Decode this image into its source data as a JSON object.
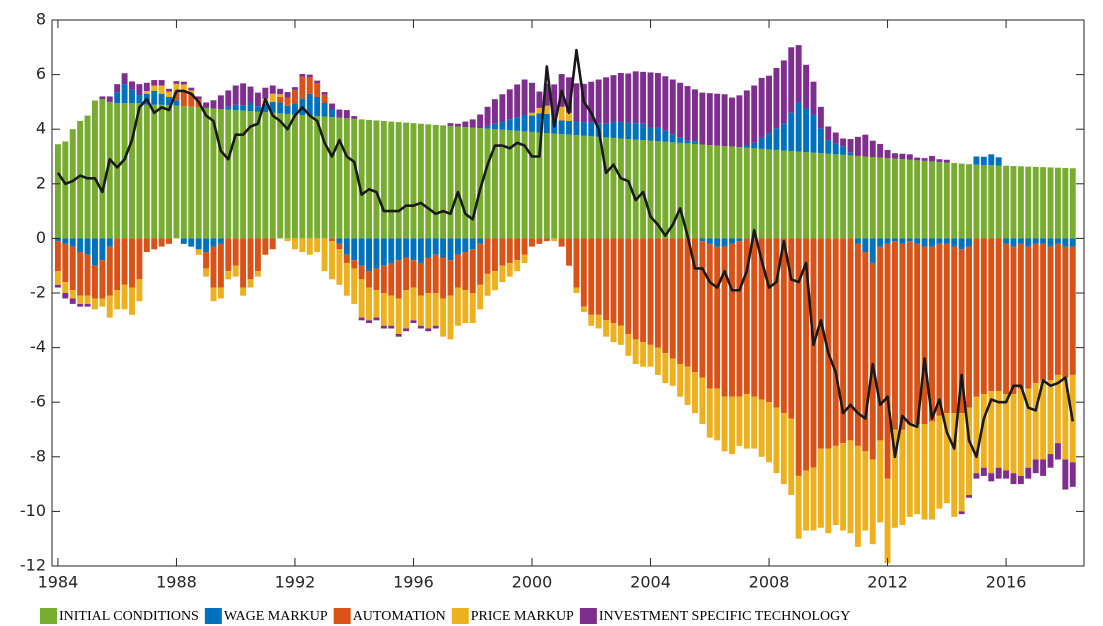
{
  "chart_data": {
    "type": "stacked-bar",
    "xlim": [
      1983.8,
      2018.63
    ],
    "ylim": [
      -12,
      8
    ],
    "xticks": [
      1984,
      1988,
      1992,
      1996,
      2000,
      2004,
      2008,
      2012,
      2016
    ],
    "yticks": [
      -12,
      -10,
      -8,
      -6,
      -4,
      -2,
      0,
      2,
      4,
      6,
      8
    ],
    "x": [
      1984,
      1984.25,
      1984.5,
      1984.75,
      1985,
      1985.25,
      1985.5,
      1985.75,
      1986,
      1986.25,
      1986.5,
      1986.75,
      1987,
      1987.25,
      1987.5,
      1987.75,
      1988,
      1988.25,
      1988.5,
      1988.75,
      1989,
      1989.25,
      1989.5,
      1989.75,
      1990,
      1990.25,
      1990.5,
      1990.75,
      1991,
      1991.25,
      1991.5,
      1991.75,
      1992,
      1992.25,
      1992.5,
      1992.75,
      1993,
      1993.25,
      1993.5,
      1993.75,
      1994,
      1994.25,
      1994.5,
      1994.75,
      1995,
      1995.25,
      1995.5,
      1995.75,
      1996,
      1996.25,
      1996.5,
      1996.75,
      1997,
      1997.25,
      1997.5,
      1997.75,
      1998,
      1998.25,
      1998.5,
      1998.75,
      1999,
      1999.25,
      1999.5,
      1999.75,
      2000,
      2000.25,
      2000.5,
      2000.75,
      2001,
      2001.25,
      2001.5,
      2001.75,
      2002,
      2002.25,
      2002.5,
      2002.75,
      2003,
      2003.25,
      2003.5,
      2003.75,
      2004,
      2004.25,
      2004.5,
      2004.75,
      2005,
      2005.25,
      2005.5,
      2005.75,
      2006,
      2006.25,
      2006.5,
      2006.75,
      2007,
      2007.25,
      2007.5,
      2007.75,
      2008,
      2008.25,
      2008.5,
      2008.75,
      2009,
      2009.25,
      2009.5,
      2009.75,
      2010,
      2010.25,
      2010.5,
      2010.75,
      2011,
      2011.25,
      2011.5,
      2011.75,
      2012,
      2012.25,
      2012.5,
      2012.75,
      2013,
      2013.25,
      2013.5,
      2013.75,
      2014,
      2014.25,
      2014.5,
      2014.75,
      2015,
      2015.25,
      2015.5,
      2015.75,
      2016,
      2016.25,
      2016.5,
      2016.75,
      2017,
      2017.25,
      2017.5,
      2017.75,
      2018,
      2018.25
    ],
    "series": [
      {
        "name": "INITIAL CONDITIONS",
        "color": "#77ac30",
        "values": [
          3.45,
          3.55,
          4.0,
          4.3,
          4.5,
          5.05,
          5.1,
          5.0,
          4.95,
          4.95,
          4.95,
          4.95,
          4.9,
          4.9,
          4.9,
          4.88,
          4.86,
          4.84,
          4.82,
          4.8,
          4.78,
          4.76,
          4.74,
          4.72,
          4.7,
          4.68,
          4.66,
          4.64,
          4.62,
          4.6,
          4.58,
          4.56,
          4.54,
          4.52,
          4.5,
          4.48,
          4.46,
          4.44,
          4.42,
          4.4,
          4.38,
          4.36,
          4.34,
          4.32,
          4.3,
          4.28,
          4.26,
          4.24,
          4.22,
          4.2,
          4.18,
          4.16,
          4.14,
          4.12,
          4.1,
          4.08,
          4.06,
          4.04,
          4.02,
          4.0,
          3.98,
          3.96,
          3.94,
          3.92,
          3.9,
          3.88,
          3.86,
          3.84,
          3.82,
          3.8,
          3.78,
          3.76,
          3.74,
          3.72,
          3.7,
          3.68,
          3.66,
          3.64,
          3.62,
          3.6,
          3.58,
          3.56,
          3.54,
          3.52,
          3.5,
          3.48,
          3.46,
          3.44,
          3.42,
          3.4,
          3.38,
          3.36,
          3.34,
          3.32,
          3.3,
          3.28,
          3.26,
          3.24,
          3.22,
          3.2,
          3.18,
          3.16,
          3.14,
          3.12,
          3.1,
          3.08,
          3.06,
          3.04,
          3.02,
          3.0,
          2.98,
          2.96,
          2.94,
          2.92,
          2.9,
          2.88,
          2.86,
          2.84,
          2.82,
          2.8,
          2.78,
          2.76,
          2.74,
          2.72,
          2.7,
          2.69,
          2.68,
          2.67,
          2.66,
          2.65,
          2.64,
          2.63,
          2.62,
          2.61,
          2.6,
          2.59,
          2.58,
          2.57
        ]
      },
      {
        "name": "WAGE MARKUP",
        "color": "#0072bd",
        "values": [
          -0.1,
          -0.2,
          -0.3,
          -0.5,
          -0.6,
          -1.0,
          -0.8,
          -0.3,
          0.4,
          0.7,
          0.5,
          0.3,
          0.4,
          0.5,
          0.4,
          0.3,
          0.2,
          -0.2,
          -0.3,
          -0.4,
          -0.5,
          -0.3,
          -0.2,
          0.1,
          0.2,
          0.2,
          0.3,
          0.2,
          0.3,
          0.4,
          0.4,
          0.3,
          0.4,
          0.6,
          0.8,
          0.7,
          0.5,
          0.3,
          -0.2,
          -0.6,
          -0.8,
          -1.0,
          -1.2,
          -1.1,
          -1.0,
          -0.9,
          -0.8,
          -0.7,
          -0.8,
          -0.9,
          -0.7,
          -0.6,
          -0.7,
          -0.8,
          -0.6,
          -0.5,
          -0.4,
          -0.2,
          0.1,
          0.2,
          0.3,
          0.4,
          0.5,
          0.6,
          0.6,
          0.7,
          0.7,
          0.5,
          0.5,
          0.5,
          0.5,
          0.5,
          0.5,
          0.5,
          0.5,
          0.6,
          0.6,
          0.6,
          0.6,
          0.6,
          0.5,
          0.5,
          0.4,
          0.3,
          0.2,
          0.1,
          0.1,
          -0.1,
          -0.2,
          -0.3,
          -0.3,
          -0.2,
          -0.1,
          0.1,
          0.2,
          0.4,
          0.6,
          0.8,
          1.0,
          1.4,
          1.8,
          1.6,
          1.4,
          0.9,
          0.5,
          0.4,
          0.3,
          0.1,
          -0.2,
          -0.5,
          -0.9,
          -0.3,
          -0.2,
          -0.1,
          -0.2,
          -0.1,
          -0.2,
          -0.3,
          -0.3,
          -0.2,
          -0.2,
          -0.3,
          -0.4,
          -0.3,
          0.3,
          0.3,
          0.4,
          0.3,
          -0.2,
          -0.3,
          -0.2,
          -0.3,
          -0.2,
          -0.2,
          -0.3,
          -0.2,
          -0.3,
          -0.3
        ]
      },
      {
        "name": "AUTOMATION",
        "color": "#d95319",
        "values": [
          -1.1,
          -1.4,
          -1.6,
          -1.6,
          -1.5,
          -1.2,
          -1.4,
          -1.8,
          -1.9,
          -1.7,
          -1.8,
          -1.5,
          -0.5,
          -0.4,
          -0.3,
          -0.2,
          0.3,
          0.6,
          0.5,
          0.3,
          -0.6,
          -1.5,
          -1.6,
          -1.2,
          -1.0,
          -1.8,
          -1.5,
          -1.2,
          -0.6,
          -0.4,
          0.2,
          0.3,
          0.5,
          0.8,
          0.6,
          0.5,
          0.3,
          -0.1,
          -0.2,
          -0.3,
          -0.3,
          -0.5,
          -0.6,
          -0.8,
          -1.0,
          -1.2,
          -1.4,
          -1.2,
          -1.0,
          -1.2,
          -1.3,
          -1.4,
          -1.5,
          -1.3,
          -1.2,
          -1.4,
          -1.6,
          -1.5,
          -1.3,
          -1.2,
          -1.0,
          -0.9,
          -0.8,
          -0.6,
          -0.3,
          -0.2,
          -0.1,
          0.1,
          -0.3,
          -1.0,
          -1.8,
          -2.5,
          -2.8,
          -2.8,
          -3.0,
          -3.1,
          -3.2,
          -3.5,
          -3.7,
          -3.8,
          -3.9,
          -4.0,
          -4.2,
          -4.4,
          -4.6,
          -4.7,
          -4.9,
          -5.0,
          -5.3,
          -5.2,
          -5.5,
          -5.6,
          -5.7,
          -5.7,
          -5.8,
          -5.9,
          -6.0,
          -6.2,
          -6.4,
          -6.6,
          -8.7,
          -8.5,
          -8.4,
          -7.7,
          -7.7,
          -7.6,
          -7.5,
          -7.4,
          -7.4,
          -7.3,
          -7.2,
          -7.1,
          -8.6,
          -6.9,
          -6.8,
          -6.7,
          -6.6,
          -6.5,
          -6.4,
          -6.3,
          -6.2,
          -6.1,
          -6.0,
          -5.9,
          -5.8,
          -5.7,
          -5.6,
          -5.6,
          -5.5,
          -5.4,
          -5.3,
          -5.2,
          -5.1,
          -5.0,
          -4.9,
          -4.8,
          -4.8,
          -4.7
        ]
      },
      {
        "name": "PRICE MARKUP",
        "color": "#edb120",
        "values": [
          -0.5,
          -0.4,
          -0.3,
          -0.3,
          -0.3,
          -0.4,
          -0.3,
          -0.8,
          -0.7,
          -0.9,
          -1.0,
          -0.8,
          0.1,
          0.2,
          0.3,
          0.2,
          0.3,
          0.2,
          0.1,
          -0.2,
          -0.3,
          -0.5,
          -0.4,
          -0.3,
          -0.4,
          -0.3,
          -0.3,
          -0.2,
          0.2,
          0.3,
          0.1,
          -0.1,
          -0.4,
          -0.5,
          -0.6,
          -0.5,
          -1.2,
          -1.4,
          -1.3,
          -1.2,
          -1.3,
          -1.4,
          -1.2,
          -1.0,
          -1.2,
          -1.1,
          -1.3,
          -1.4,
          -1.2,
          -1.1,
          -1.3,
          -1.2,
          -1.4,
          -1.6,
          -1.4,
          -1.2,
          -1.1,
          -0.9,
          -0.8,
          -0.7,
          -0.6,
          -0.5,
          -0.4,
          -0.3,
          0.1,
          0.2,
          0.3,
          -0.1,
          0.5,
          0.3,
          -0.2,
          -0.2,
          -0.4,
          -0.5,
          -0.6,
          -0.7,
          -0.7,
          -0.8,
          -0.9,
          -0.9,
          -0.8,
          -1.0,
          -1.1,
          -1.0,
          -1.2,
          -1.4,
          -1.5,
          -1.7,
          -1.8,
          -1.9,
          -2.0,
          -2.1,
          -1.8,
          -2.0,
          -1.9,
          -2.1,
          -2.2,
          -2.4,
          -2.6,
          -2.8,
          -2.3,
          -2.2,
          -2.3,
          -2.9,
          -3.1,
          -2.9,
          -3.2,
          -3.4,
          -3.7,
          -2.9,
          -3.1,
          -3.0,
          -3.1,
          -3.6,
          -3.5,
          -3.4,
          -3.3,
          -3.5,
          -3.6,
          -3.4,
          -3.3,
          -3.8,
          -3.6,
          -3.2,
          -2.8,
          -2.7,
          -3.0,
          -2.8,
          -2.8,
          -2.9,
          -3.2,
          -2.9,
          -2.8,
          -2.9,
          -2.7,
          -2.5,
          -3.0,
          -3.2
        ]
      },
      {
        "name": "INVESTMENT SPECIFIC TECHNOLOGY",
        "color": "#7e2f8e",
        "values": [
          -0.1,
          -0.2,
          -0.2,
          -0.1,
          -0.1,
          0.0,
          0.1,
          0.2,
          0.3,
          0.4,
          0.3,
          0.4,
          0.3,
          0.2,
          0.2,
          0.1,
          0.1,
          0.1,
          0.1,
          0.1,
          0.2,
          0.3,
          0.5,
          0.6,
          0.7,
          0.8,
          0.6,
          0.5,
          0.4,
          0.3,
          0.2,
          0.2,
          0.1,
          0.1,
          0.1,
          0.1,
          0.1,
          0.2,
          0.3,
          0.3,
          0.1,
          -0.1,
          -0.1,
          -0.1,
          -0.1,
          -0.1,
          -0.1,
          -0.1,
          -0.1,
          -0.1,
          -0.1,
          -0.1,
          0.0,
          0.1,
          0.1,
          0.2,
          0.3,
          0.5,
          0.7,
          0.9,
          1.0,
          1.1,
          1.2,
          1.3,
          1.1,
          0.6,
          0.8,
          1.2,
          1.2,
          1.3,
          1.4,
          1.4,
          1.5,
          1.6,
          1.7,
          1.7,
          1.8,
          1.8,
          1.9,
          1.9,
          2.0,
          2.0,
          2.0,
          2.0,
          2.0,
          2.0,
          1.9,
          1.9,
          1.9,
          1.9,
          1.9,
          1.8,
          1.9,
          2.0,
          2.1,
          2.2,
          2.1,
          2.2,
          2.3,
          2.4,
          2.1,
          1.6,
          1.2,
          0.8,
          0.5,
          0.4,
          0.3,
          0.5,
          0.7,
          0.8,
          0.6,
          0.5,
          0.3,
          0.2,
          0.2,
          0.2,
          0.1,
          0.1,
          0.2,
          0.1,
          0.1,
          0.0,
          -0.1,
          -0.1,
          -0.2,
          -0.3,
          -0.3,
          -0.4,
          -0.3,
          -0.4,
          -0.3,
          -0.4,
          -0.5,
          -0.6,
          -0.5,
          -0.6,
          -1.1,
          -0.9
        ]
      }
    ],
    "line": {
      "color": "#1a1a1a",
      "values": [
        2.4,
        2.0,
        2.1,
        2.3,
        2.2,
        2.2,
        1.7,
        2.9,
        2.6,
        2.9,
        3.6,
        4.8,
        5.1,
        4.6,
        4.8,
        4.7,
        5.4,
        5.4,
        5.3,
        5.0,
        4.5,
        4.3,
        3.2,
        2.9,
        3.8,
        3.8,
        4.1,
        4.2,
        5.1,
        4.5,
        4.3,
        4.0,
        4.5,
        4.8,
        4.5,
        4.3,
        3.5,
        3.0,
        3.6,
        3.0,
        2.8,
        1.6,
        1.8,
        1.7,
        1.0,
        1.0,
        1.0,
        1.2,
        1.2,
        1.3,
        1.1,
        0.9,
        1.0,
        0.9,
        1.7,
        0.9,
        0.7,
        1.8,
        2.7,
        3.4,
        3.4,
        3.3,
        3.5,
        3.4,
        3.0,
        3.0,
        6.3,
        4.1,
        5.4,
        4.6,
        6.9,
        5.0,
        4.6,
        4.0,
        2.4,
        2.7,
        2.2,
        2.1,
        1.4,
        1.7,
        0.8,
        0.5,
        0.1,
        0.5,
        1.1,
        0.1,
        -1.1,
        -1.1,
        -1.6,
        -1.8,
        -1.2,
        -1.9,
        -1.9,
        -1.2,
        0.3,
        -0.8,
        -1.8,
        -1.6,
        -0.1,
        -1.5,
        -1.6,
        -0.9,
        -3.9,
        -3.0,
        -4.2,
        -4.9,
        -6.4,
        -6.1,
        -6.4,
        -6.6,
        -4.6,
        -6.1,
        -5.8,
        -8.0,
        -6.5,
        -6.8,
        -6.9,
        -4.4,
        -6.6,
        -5.9,
        -7.1,
        -7.7,
        -5.0,
        -7.4,
        -8.0,
        -6.6,
        -5.9,
        -6.0,
        -6.0,
        -5.4,
        -5.4,
        -6.2,
        -6.3,
        -5.2,
        -5.4,
        -5.3,
        -5.1,
        -6.7
      ]
    }
  }
}
